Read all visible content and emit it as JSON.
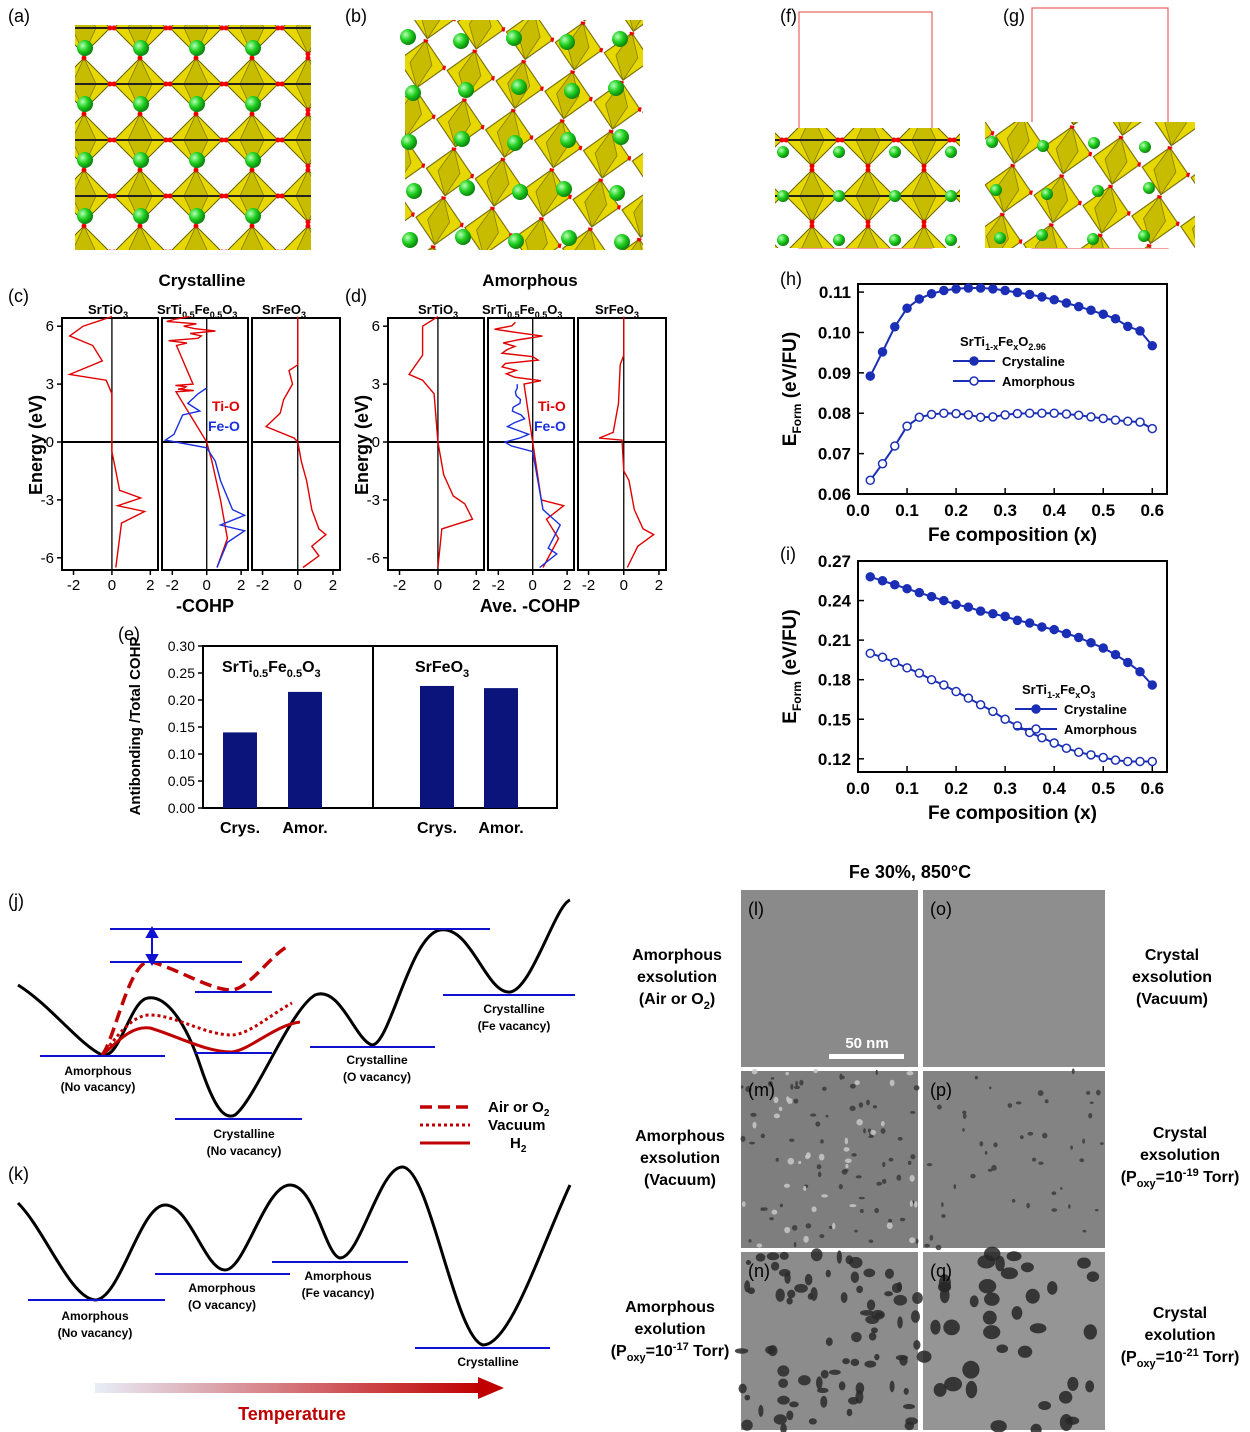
{
  "panel_letters": {
    "a": "(a)",
    "b": "(b)",
    "c": "(c)",
    "d": "(d)",
    "e": "(e)",
    "f": "(f)",
    "g": "(g)",
    "h": "(h)",
    "i": "(i)",
    "j": "(j)",
    "k": "(k)",
    "l": "(l)",
    "m": "(m)",
    "n": "(n)",
    "o": "(o)",
    "p": "(p)",
    "q": "(q)"
  },
  "colors": {
    "navy": "#0a147a",
    "blue": "#1a2fb5",
    "red": "#e00000",
    "darkred": "#c00000",
    "yellow": "#e2d400",
    "green": "#10c010",
    "line_blue": "#1010d0"
  },
  "cohp": {
    "crystalline_title": "Crystalline",
    "amorphous_title": "Amorphous",
    "sub_sto": "SrTiO",
    "sub_stfo_a": "SrTi",
    "sub_stfo_b": "Fe",
    "sub_sfo": "SrFeO",
    "sub_3": "3",
    "sub_05": "0.5",
    "ylabel": "Energy (eV)",
    "xlabel_c": "-COHP",
    "xlabel_d": "Ave. -COHP",
    "legend_tio": "Ti-O",
    "legend_feo": "Fe-O",
    "yticks": [
      "6",
      "3",
      "0",
      "-3",
      "-6"
    ],
    "xticks": [
      "-2",
      "0",
      "2"
    ]
  },
  "chart_data": [
    {
      "type": "bar",
      "panel": "e",
      "groups": [
        "SrTi0.5Fe0.5O3",
        "SrFeO3"
      ],
      "categories": [
        "Crys.",
        "Amor.",
        "Crys.",
        "Amor."
      ],
      "values": [
        0.14,
        0.215,
        0.226,
        0.222
      ],
      "ylabel": "Antibonding /Total COHP",
      "ylim": [
        0,
        0.3
      ],
      "yticks": [
        "0.00",
        "0.05",
        "0.10",
        "0.15",
        "0.20",
        "0.25",
        "0.30"
      ],
      "group_label_a": "SrTi",
      "group_label_b": "Fe",
      "group_label_2": "SrFeO"
    },
    {
      "type": "line",
      "panel": "h",
      "x": [
        0.025,
        0.05,
        0.075,
        0.1,
        0.125,
        0.15,
        0.175,
        0.2,
        0.225,
        0.25,
        0.275,
        0.3,
        0.325,
        0.35,
        0.375,
        0.4,
        0.425,
        0.45,
        0.475,
        0.5,
        0.525,
        0.55,
        0.575,
        0.6
      ],
      "series": [
        {
          "name": "Crystaline",
          "values": [
            0.0892,
            0.0952,
            0.1014,
            0.106,
            0.1083,
            0.1096,
            0.1104,
            0.1108,
            0.111,
            0.111,
            0.1108,
            0.1104,
            0.1099,
            0.1094,
            0.1088,
            0.1081,
            0.1073,
            0.1064,
            0.1055,
            0.1045,
            0.1034,
            0.1015,
            0.1004,
            0.0967
          ]
        },
        {
          "name": "Amorphous",
          "values": [
            0.0634,
            0.0675,
            0.0719,
            0.0768,
            0.079,
            0.0797,
            0.08,
            0.0799,
            0.0796,
            0.079,
            0.0791,
            0.0796,
            0.0799,
            0.08,
            0.08,
            0.08,
            0.0798,
            0.0795,
            0.0791,
            0.0787,
            0.0783,
            0.078,
            0.0778,
            0.0762
          ]
        }
      ],
      "title": "SrTi1-xFexO2.96",
      "legend_title_a": "SrTi",
      "legend_title_b": "Fe",
      "legend_title_c": "O",
      "legend_sub_1": "1-x",
      "legend_sub_x": "x",
      "legend_sub_296": "2.96",
      "xlabel": "Fe composition (x)",
      "ylabel_main": "E",
      "ylabel_sub": "Form",
      "ylabel_unit": "(eV/FU)",
      "xlim": [
        0,
        0.63
      ],
      "ylim": [
        0.06,
        0.112
      ],
      "xticks": [
        "0.0",
        "0.1",
        "0.2",
        "0.3",
        "0.4",
        "0.5",
        "0.6"
      ],
      "yticks": [
        "0.06",
        "0.07",
        "0.08",
        "0.09",
        "0.10",
        "0.11"
      ]
    },
    {
      "type": "line",
      "panel": "i",
      "x": [
        0.025,
        0.05,
        0.075,
        0.1,
        0.125,
        0.15,
        0.175,
        0.2,
        0.225,
        0.25,
        0.275,
        0.3,
        0.325,
        0.35,
        0.375,
        0.4,
        0.425,
        0.45,
        0.475,
        0.5,
        0.525,
        0.55,
        0.575,
        0.6
      ],
      "series": [
        {
          "name": "Crystaline",
          "values": [
            0.258,
            0.255,
            0.252,
            0.249,
            0.246,
            0.243,
            0.24,
            0.237,
            0.235,
            0.232,
            0.23,
            0.228,
            0.225,
            0.223,
            0.22,
            0.218,
            0.215,
            0.212,
            0.208,
            0.204,
            0.199,
            0.193,
            0.186,
            0.176
          ]
        },
        {
          "name": "Amorphous",
          "values": [
            0.2,
            0.197,
            0.193,
            0.189,
            0.185,
            0.18,
            0.176,
            0.171,
            0.166,
            0.161,
            0.156,
            0.15,
            0.145,
            0.14,
            0.136,
            0.132,
            0.128,
            0.125,
            0.123,
            0.121,
            0.119,
            0.118,
            0.118,
            0.118
          ]
        }
      ],
      "legend_title_a": "SrTi",
      "legend_title_b": "Fe",
      "legend_title_c": "O",
      "legend_sub_1": "1-x",
      "legend_sub_x": "x",
      "legend_sub_3": "3",
      "xlabel": "Fe composition (x)",
      "ylabel_main": "E",
      "ylabel_sub": "Form",
      "ylabel_unit": "(eV/FU)",
      "xlim": [
        0,
        0.63
      ],
      "ylim": [
        0.11,
        0.27
      ],
      "xticks": [
        "0.0",
        "0.1",
        "0.2",
        "0.3",
        "0.4",
        "0.5",
        "0.6"
      ],
      "yticks": [
        "0.12",
        "0.15",
        "0.18",
        "0.21",
        "0.24",
        "0.27"
      ]
    }
  ],
  "energy_j": {
    "amorphous_a": "Amorphous",
    "amorphous_b": "(No vacancy)",
    "crys_nov_a": "Crystalline",
    "crys_nov_b": "(No vacancy)",
    "crys_ov_a": "Crystalline",
    "crys_ov_b": "(O vacancy)",
    "crys_fev_a": "Crystalline",
    "crys_fev_b": "(Fe vacancy)",
    "leg_air": "Air or O",
    "leg_air_sub": "2",
    "leg_vac": "Vacuum",
    "leg_h2": "H",
    "leg_h2_sub": "2"
  },
  "energy_k": {
    "amor_nov_a": "Amorphous",
    "amor_nov_b": "(No vacancy)",
    "amor_ov_a": "Amorphous",
    "amor_ov_b": "(O vacancy)",
    "amor_fev_a": "Amorphous",
    "amor_fev_b": "(Fe vacancy)",
    "crystalline": "Crystalline",
    "temperature": "Temperature"
  },
  "tem": {
    "header": "Fe 30%, 850°C",
    "scale": "50 nm",
    "l_a": "Amorphous",
    "l_b": "exsolution",
    "l_c": "(Air or O",
    "l_c_sub": "2",
    "l_c_end": ")",
    "m_a": "Amorphous",
    "m_b": "exsolution",
    "m_c": "(Vacuum)",
    "n_a": "Amorphous",
    "n_b": "exolution",
    "n_c": "(P",
    "n_c_sub": "oxy",
    "n_c_mid": "=10",
    "n_c_sup": "-17",
    "n_c_end": " Torr)",
    "o_a": "Crystal",
    "o_b": "exsolution",
    "o_c": "(Vacuum)",
    "p_a": "Crystal",
    "p_b": "exsolution",
    "p_c": "(P",
    "p_c_sub": "oxy",
    "p_c_mid": "=10",
    "p_c_sup": "-19",
    "p_c_end": " Torr)",
    "q_a": "Crystal",
    "q_b": "exolution",
    "q_c": "(P",
    "q_c_sub": "oxy",
    "q_c_mid": "=10",
    "q_c_sup": "-21",
    "q_c_end": " Torr)"
  }
}
